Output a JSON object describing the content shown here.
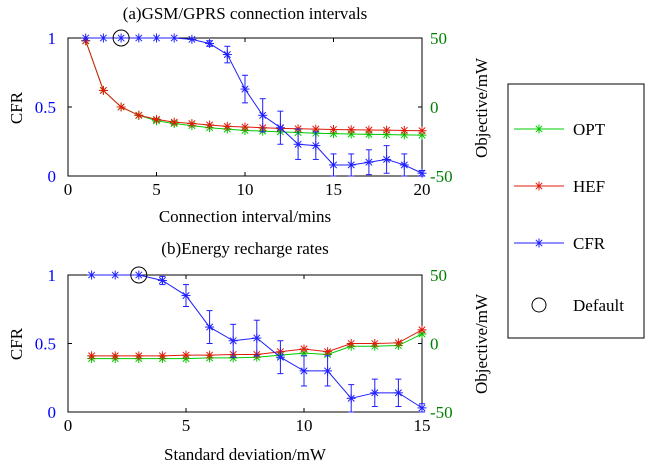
{
  "colors": {
    "opt": "#00cc00",
    "hef": "#e01b0b",
    "cfr": "#1f1fff",
    "right_axis": "#008000",
    "left_axis": "#0000ff"
  },
  "legend": {
    "items": [
      {
        "label": "OPT",
        "series": "opt"
      },
      {
        "label": "HEF",
        "series": "hef"
      },
      {
        "label": "CFR",
        "series": "cfr"
      },
      {
        "label": "Default",
        "marker": "circle"
      }
    ]
  },
  "chart_data": [
    {
      "type": "line",
      "title": "(a)GSM/GPRS connection intervals",
      "xlabel": "Connection interval/mins",
      "ylabel": "CFR",
      "ylabel_right": "Objective/mW",
      "xlim": [
        0,
        20
      ],
      "ylim": [
        0,
        1
      ],
      "ylim_right": [
        -50,
        50
      ],
      "xticks": [
        0,
        5,
        10,
        15,
        20
      ],
      "yticks": [
        0,
        0.5,
        1
      ],
      "ytick_labels": [
        "0",
        "0.5",
        "1"
      ],
      "yticks_right": [
        -50,
        0,
        50
      ],
      "x": [
        1,
        2,
        3,
        4,
        5,
        6,
        7,
        8,
        9,
        10,
        11,
        12,
        13,
        14,
        15,
        16,
        17,
        18,
        19,
        20
      ],
      "series": [
        {
          "key": "cfr",
          "axis": "left",
          "values": [
            1,
            1,
            1,
            1,
            1,
            1,
            0.99,
            0.96,
            0.88,
            0.63,
            0.44,
            0.35,
            0.23,
            0.22,
            0.08,
            0.08,
            0.1,
            0.12,
            0.08,
            0.02
          ],
          "errors": [
            0,
            0,
            0,
            0,
            0,
            0,
            0,
            0.02,
            0.06,
            0.1,
            0.12,
            0.12,
            0.11,
            0.1,
            0.08,
            0.08,
            0.09,
            0.1,
            0.08,
            0.02
          ]
        },
        {
          "key": "hef",
          "axis": "right",
          "values": [
            48,
            12,
            0,
            -6,
            -9,
            -11,
            -12,
            -13,
            -14,
            -14.5,
            -15,
            -15.5,
            -15.8,
            -16,
            -16.3,
            -16.5,
            -16.7,
            -16.8,
            -17,
            -17.2
          ]
        },
        {
          "key": "opt",
          "axis": "right",
          "values": [
            48,
            12,
            0,
            -6,
            -10,
            -12,
            -13.5,
            -15,
            -16,
            -17,
            -17.5,
            -18,
            -18.5,
            -19,
            -19.3,
            -19.6,
            -19.8,
            -20,
            -20.2,
            -20.4
          ]
        }
      ],
      "default_marker": {
        "x": 3,
        "y": 1
      }
    },
    {
      "type": "line",
      "title": "(b)Energy recharge rates",
      "xlabel": "Standard deviation/mW",
      "ylabel": "CFR",
      "ylabel_right": "Objective/mW",
      "xlim": [
        0,
        15
      ],
      "ylim": [
        0,
        1
      ],
      "ylim_right": [
        -50,
        50
      ],
      "xticks": [
        0,
        5,
        10,
        15
      ],
      "yticks": [
        0,
        0.5,
        1
      ],
      "ytick_labels": [
        "0",
        "0.5",
        "1"
      ],
      "yticks_right": [
        -50,
        0,
        50
      ],
      "x": [
        1,
        2,
        3,
        4,
        5,
        6,
        7,
        8,
        9,
        10,
        11,
        12,
        13,
        14,
        15
      ],
      "series": [
        {
          "key": "cfr",
          "axis": "left",
          "values": [
            1,
            1,
            1,
            0.96,
            0.85,
            0.62,
            0.52,
            0.54,
            0.4,
            0.3,
            0.3,
            0.1,
            0.14,
            0.14,
            0.03
          ],
          "errors": [
            0,
            0,
            0,
            0.03,
            0.08,
            0.12,
            0.12,
            0.13,
            0.12,
            0.11,
            0.11,
            0.1,
            0.1,
            0.1,
            0.03
          ]
        },
        {
          "key": "hef",
          "axis": "right",
          "values": [
            -9,
            -9,
            -9,
            -9,
            -8.5,
            -8.5,
            -8,
            -8,
            -6,
            -4,
            -6,
            0,
            0,
            0.5,
            10
          ]
        },
        {
          "key": "opt",
          "axis": "right",
          "values": [
            -11,
            -11,
            -11,
            -11,
            -11,
            -10.5,
            -10.5,
            -10,
            -8.5,
            -7,
            -8,
            -2,
            -2,
            -1.5,
            7
          ]
        }
      ],
      "default_marker": {
        "x": 3,
        "y": 1
      }
    }
  ]
}
